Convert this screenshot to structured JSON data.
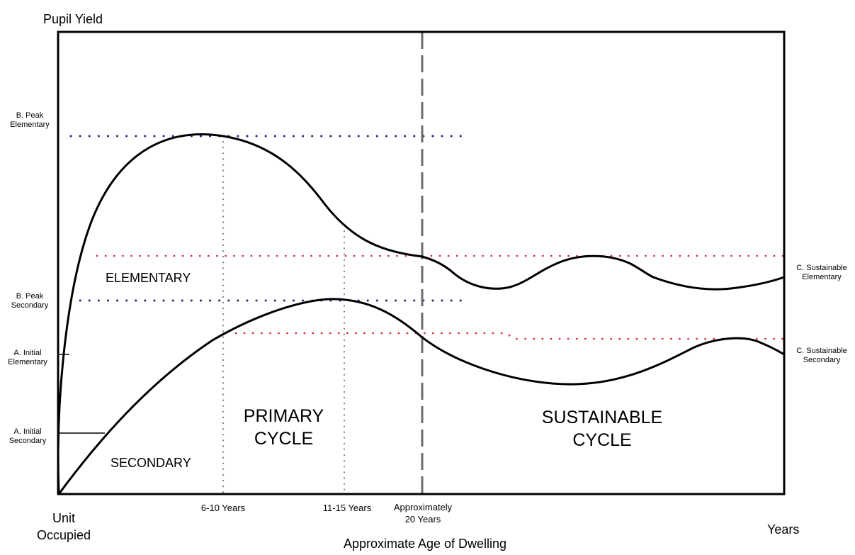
{
  "y_axis": {
    "label": "Pupil Yield",
    "levels": {
      "peak_elementary": "B.  Peak\nElementary",
      "peak_secondary": "B.  Peak\nSecondary",
      "initial_elementary": "A. Initial\nElementary",
      "initial_secondary": "A. Initial\nSecondary"
    }
  },
  "right_labels": {
    "sustainable_elementary": "C. Sustainable\nElementary",
    "sustainable_secondary": "C. Sustainable\nSecondary"
  },
  "x_axis": {
    "origin": "Unit\nOccupied",
    "ticks": [
      "6-10 Years",
      "11-15 Years",
      "Approximately\n20 Years"
    ],
    "end": "Years",
    "title": "Approximate Age of Dwelling"
  },
  "curves": {
    "elementary": "ELEMENTARY",
    "secondary": "SECONDARY"
  },
  "cycles": {
    "primary": "PRIMARY\nCYCLE",
    "sustainable": "SUSTAINABLE\nCYCLE"
  },
  "colors": {
    "frame": "#000000",
    "curve": "#000000",
    "peak_reference": "#1f2a7a",
    "sustainable_reference": "#e0202a",
    "age_marker": "#7f7f7f",
    "cycle_boundary": "#6b6b6b"
  }
}
